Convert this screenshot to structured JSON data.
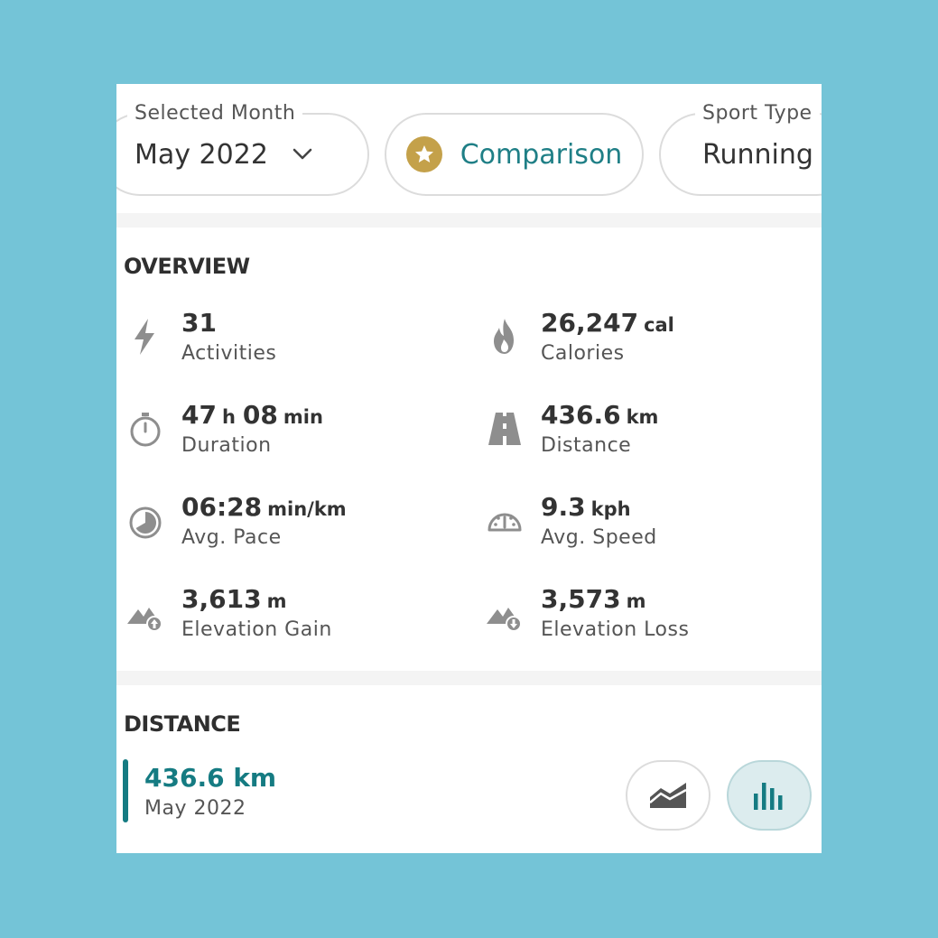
{
  "filters": {
    "month": {
      "legend": "Selected Month",
      "value": "May 2022"
    },
    "comparison": {
      "label": "Comparison"
    },
    "sport": {
      "legend": "Sport Type",
      "value": "Running"
    }
  },
  "overview": {
    "title": "OVERVIEW",
    "stats": [
      {
        "icon": "lightning-icon",
        "value": "31",
        "unit": "",
        "label": "Activities"
      },
      {
        "icon": "flame-icon",
        "value": "26,247",
        "unit": "cal",
        "label": "Calories"
      },
      {
        "icon": "stopwatch-icon",
        "value": "47",
        "unit": "h",
        "value2": "08",
        "unit2": "min",
        "label": "Duration"
      },
      {
        "icon": "road-icon",
        "value": "436.6",
        "unit": "km",
        "label": "Distance"
      },
      {
        "icon": "pace-icon",
        "value": "06:28",
        "unit": "min/km",
        "label": "Avg. Pace"
      },
      {
        "icon": "speedometer-icon",
        "value": "9.3",
        "unit": "kph",
        "label": "Avg. Speed"
      },
      {
        "icon": "elevation-gain-icon",
        "value": "3,613",
        "unit": "m",
        "label": "Elevation Gain"
      },
      {
        "icon": "elevation-loss-icon",
        "value": "3,573",
        "unit": "m",
        "label": "Elevation Loss"
      }
    ]
  },
  "distance": {
    "title": "DISTANCE",
    "value": "436.6 km",
    "period": "May 2022",
    "accent": "#157b82"
  },
  "colors": {
    "background": "#74c4d7",
    "accent": "#1f7f86",
    "star": "#c4a14a"
  }
}
